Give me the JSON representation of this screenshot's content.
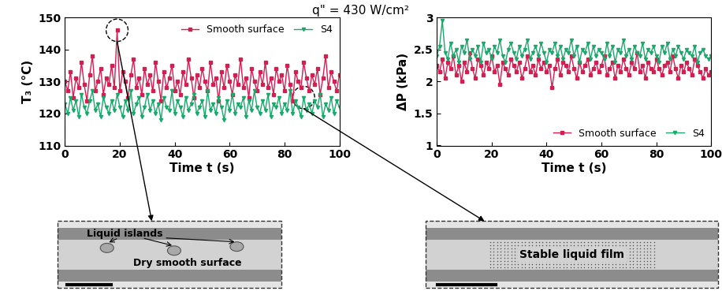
{
  "title": "q\" = 430 W/cm²",
  "chart_data": [
    {
      "type": "line",
      "x_label": "Time t (s)",
      "y_label": "T₃ (°C)",
      "x": [
        0,
        1,
        2,
        3,
        4,
        5,
        6,
        7,
        8,
        9,
        10,
        11,
        12,
        13,
        14,
        15,
        16,
        17,
        18,
        19,
        20,
        21,
        22,
        23,
        24,
        25,
        26,
        27,
        28,
        29,
        30,
        31,
        32,
        33,
        34,
        35,
        36,
        37,
        38,
        39,
        40,
        41,
        42,
        43,
        44,
        45,
        46,
        47,
        48,
        49,
        50,
        51,
        52,
        53,
        54,
        55,
        56,
        57,
        58,
        59,
        60,
        61,
        62,
        63,
        64,
        65,
        66,
        67,
        68,
        69,
        70,
        71,
        72,
        73,
        74,
        75,
        76,
        77,
        78,
        79,
        80,
        81,
        82,
        83,
        84,
        85,
        86,
        87,
        88,
        89,
        90,
        91,
        92,
        93,
        94,
        95,
        96,
        97,
        98,
        99,
        100
      ],
      "xlim": [
        0,
        100
      ],
      "xticks": [
        0,
        20,
        40,
        60,
        80,
        100
      ],
      "ylim": [
        110,
        150
      ],
      "yticks": [
        110,
        120,
        130,
        140,
        150
      ],
      "legend": "upper right",
      "series": [
        {
          "name": "Smooth surface",
          "color": "#d81b50",
          "marker": "square",
          "line_style": "solid",
          "values": [
            130,
            127,
            133,
            125,
            131,
            128,
            136,
            129,
            124,
            132,
            138,
            127,
            130,
            134,
            126,
            131,
            129,
            135,
            128,
            146,
            127,
            133,
            130,
            125,
            132,
            137,
            128,
            131,
            126,
            134,
            129,
            132,
            127,
            136,
            130,
            124,
            133,
            128,
            131,
            135,
            127,
            130,
            126,
            133,
            129,
            137,
            131,
            125,
            132,
            128,
            134,
            130,
            127,
            136,
            129,
            131,
            124,
            133,
            128,
            135,
            130,
            126,
            132,
            129,
            137,
            128,
            131,
            125,
            134,
            130,
            127,
            133,
            129,
            136,
            128,
            131,
            126,
            134,
            130,
            132,
            127,
            135,
            129,
            124,
            133,
            130,
            128,
            136,
            131,
            127,
            132,
            129,
            134,
            126,
            131,
            138,
            128,
            133,
            130,
            127,
            132
          ]
        },
        {
          "name": "S4",
          "color": "#1aa86b",
          "marker": "triangle_down",
          "line_style": "solid",
          "values": [
            123,
            120,
            125,
            121,
            124,
            119,
            126,
            122,
            120,
            124,
            127,
            121,
            123,
            119,
            125,
            122,
            120,
            124,
            121,
            126,
            122,
            119,
            124,
            121,
            127,
            120,
            123,
            125,
            119,
            122,
            126,
            121,
            124,
            120,
            123,
            118,
            125,
            122,
            121,
            127,
            120,
            124,
            122,
            119,
            125,
            121,
            123,
            126,
            120,
            122,
            124,
            119,
            127,
            121,
            123,
            120,
            125,
            122,
            118,
            124,
            121,
            126,
            120,
            123,
            122,
            125,
            119,
            124,
            121,
            127,
            122,
            120,
            124,
            121,
            126,
            119,
            123,
            122,
            125,
            120,
            123,
            121,
            127,
            120,
            124,
            122,
            119,
            125,
            121,
            123,
            120,
            124,
            122,
            126,
            119,
            123,
            121,
            125,
            120,
            124,
            122
          ]
        }
      ]
    },
    {
      "type": "line",
      "x_label": "Time t (s)",
      "y_label": "ΔP (kPa)",
      "x": [
        0,
        1,
        2,
        3,
        4,
        5,
        6,
        7,
        8,
        9,
        10,
        11,
        12,
        13,
        14,
        15,
        16,
        17,
        18,
        19,
        20,
        21,
        22,
        23,
        24,
        25,
        26,
        27,
        28,
        29,
        30,
        31,
        32,
        33,
        34,
        35,
        36,
        37,
        38,
        39,
        40,
        41,
        42,
        43,
        44,
        45,
        46,
        47,
        48,
        49,
        50,
        51,
        52,
        53,
        54,
        55,
        56,
        57,
        58,
        59,
        60,
        61,
        62,
        63,
        64,
        65,
        66,
        67,
        68,
        69,
        70,
        71,
        72,
        73,
        74,
        75,
        76,
        77,
        78,
        79,
        80,
        81,
        82,
        83,
        84,
        85,
        86,
        87,
        88,
        89,
        90,
        91,
        92,
        93,
        94,
        95,
        96,
        97,
        98,
        99,
        100
      ],
      "xlim": [
        0,
        100
      ],
      "xticks": [
        0,
        20,
        40,
        60,
        80,
        100
      ],
      "ylim": [
        1,
        3
      ],
      "yticks": [
        1,
        1.5,
        2,
        2.5,
        3
      ],
      "legend": "lower right",
      "series": [
        {
          "name": "Smooth surface",
          "color": "#d81b50",
          "marker": "square",
          "line_style": "solid",
          "values": [
            2.25,
            2.15,
            2.35,
            2.05,
            2.3,
            2.2,
            2.4,
            2.1,
            2.25,
            2.0,
            2.3,
            2.15,
            2.45,
            2.2,
            2.05,
            2.35,
            2.25,
            2.1,
            2.3,
            2.2,
            2.4,
            2.15,
            2.25,
            1.95,
            2.3,
            2.2,
            2.1,
            2.35,
            2.25,
            2.15,
            2.3,
            2.05,
            2.2,
            2.4,
            2.15,
            2.25,
            2.1,
            2.35,
            2.2,
            2.3,
            2.15,
            2.25,
            1.9,
            2.2,
            2.35,
            2.1,
            2.3,
            2.25,
            2.15,
            2.4,
            2.2,
            2.05,
            2.3,
            2.15,
            2.25,
            2.35,
            2.1,
            2.2,
            2.3,
            2.15,
            2.25,
            2.4,
            2.1,
            2.2,
            2.3,
            2.05,
            2.25,
            2.15,
            2.35,
            2.2,
            2.1,
            2.3,
            2.2,
            2.45,
            2.15,
            2.25,
            2.05,
            2.3,
            2.2,
            2.15,
            2.35,
            2.2,
            2.1,
            2.25,
            2.3,
            2.15,
            2.4,
            2.2,
            2.05,
            2.25,
            2.15,
            2.3,
            2.2,
            2.1,
            2.35,
            2.25,
            2.15,
            2.05,
            2.2,
            2.1,
            2.15
          ]
        },
        {
          "name": "S4",
          "color": "#1aa86b",
          "marker": "triangle_down",
          "line_style": "solid",
          "values": [
            2.4,
            2.55,
            2.95,
            2.45,
            2.35,
            2.6,
            2.4,
            2.5,
            2.3,
            2.55,
            2.45,
            2.65,
            2.35,
            2.5,
            2.4,
            2.55,
            2.3,
            2.6,
            2.45,
            2.5,
            2.35,
            2.55,
            2.45,
            2.65,
            2.4,
            2.3,
            2.5,
            2.6,
            2.45,
            2.35,
            2.55,
            2.4,
            2.5,
            2.65,
            2.35,
            2.45,
            2.55,
            2.4,
            2.6,
            2.45,
            2.3,
            2.5,
            2.45,
            2.6,
            2.4,
            2.55,
            2.35,
            2.5,
            2.45,
            2.65,
            2.4,
            2.55,
            2.3,
            2.5,
            2.45,
            2.6,
            2.35,
            2.55,
            2.4,
            2.5,
            2.45,
            2.35,
            2.6,
            2.4,
            2.55,
            2.3,
            2.5,
            2.45,
            2.65,
            2.4,
            2.5,
            2.35,
            2.55,
            2.45,
            2.4,
            2.6,
            2.35,
            2.5,
            2.45,
            2.55,
            2.4,
            2.3,
            2.55,
            2.45,
            2.6,
            2.35,
            2.5,
            2.4,
            2.55,
            2.45,
            2.35,
            2.5,
            2.45,
            2.4,
            2.55,
            2.3,
            2.45,
            2.5,
            2.4,
            2.35,
            2.4
          ]
        }
      ]
    }
  ],
  "insets": [
    {
      "annotations": [
        "Liquid islands",
        "Dry smooth surface"
      ]
    },
    {
      "annotations": [
        "Stable liquid film"
      ]
    }
  ]
}
